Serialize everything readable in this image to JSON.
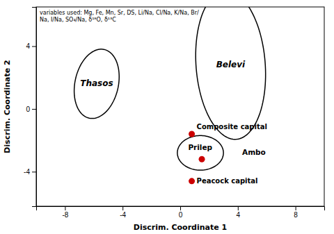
{
  "chart_data": {
    "type": "scatter",
    "xlabel": "Discrim. Coordinate 1",
    "ylabel": "Discrim. Coordinate 2",
    "xlim": [
      -10,
      10
    ],
    "ylim": [
      -6.2,
      6.5
    ],
    "xticks": [
      -8,
      -4,
      0,
      4,
      8
    ],
    "yticks": [
      -4,
      0,
      4
    ],
    "x": [
      0.8,
      1.5,
      0.8
    ],
    "y": [
      -1.6,
      -3.2,
      -4.6
    ],
    "point_labels": [
      "Composite capital",
      null,
      "Peacock capital"
    ],
    "color": "#cc0000",
    "ellipses": [
      {
        "cx": -5.8,
        "cy": 1.6,
        "width": 3.0,
        "height": 4.5,
        "angle": -15,
        "label": "Thasos"
      },
      {
        "cx": 3.5,
        "cy": 2.8,
        "width": 4.8,
        "height": 9.5,
        "angle": 5,
        "label": "Belevi"
      },
      {
        "cx": 1.4,
        "cy": -2.8,
        "width": 3.2,
        "height": 2.2,
        "angle": 0,
        "label": null
      }
    ],
    "region_labels": [
      {
        "text": "Ambo",
        "x": 4.3,
        "y": -2.8
      },
      {
        "text": "Prilep",
        "x": 0.55,
        "y": -2.5
      }
    ],
    "annotations": [
      "variables used: Mg, Fe, Mn, Sr, DS, Li/Na, Cl/Na, K/Na, Br/",
      "Na, I/Na, SO₄/Na, δ¹⁸O, δ¹³C"
    ]
  }
}
